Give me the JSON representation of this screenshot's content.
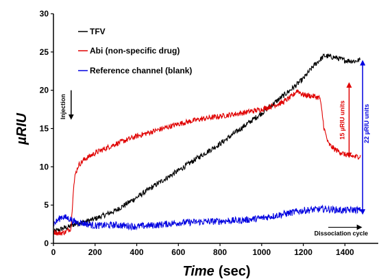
{
  "colors": {
    "tfv": "#000000",
    "abi": "#e00000",
    "reference": "#0000e0",
    "axis": "#000000"
  },
  "chart_data": {
    "type": "line",
    "title": "",
    "xlabel": {
      "main": "Time",
      "unit": "(sec)"
    },
    "ylabel": "µRIU",
    "xlim": [
      0,
      1500
    ],
    "ylim": [
      0,
      30
    ],
    "xticks": [
      0,
      200,
      400,
      600,
      800,
      1000,
      1200,
      1400
    ],
    "yticks": [
      0,
      5,
      10,
      15,
      20,
      25,
      30
    ],
    "grid": false,
    "legend_position": "top-left",
    "series": [
      {
        "name": "TFV",
        "color": "#000000",
        "x": [
          0,
          50,
          80,
          100,
          150,
          200,
          300,
          400,
          500,
          600,
          700,
          800,
          900,
          1000,
          1100,
          1150,
          1200,
          1250,
          1300,
          1350,
          1400,
          1450,
          1475
        ],
        "y": [
          1.5,
          2.0,
          2.2,
          2.5,
          2.8,
          3.2,
          4.3,
          6.0,
          7.8,
          9.5,
          11.3,
          13.0,
          15.0,
          17.0,
          19.2,
          20.3,
          21.5,
          23.2,
          24.5,
          24.3,
          23.9,
          23.8,
          24.0
        ]
      },
      {
        "name": "Abi (non-specific drug)",
        "color": "#e00000",
        "x": [
          0,
          30,
          60,
          85,
          90,
          95,
          105,
          120,
          150,
          200,
          300,
          400,
          500,
          600,
          700,
          800,
          900,
          1000,
          1100,
          1150,
          1170,
          1200,
          1250,
          1280,
          1300,
          1320,
          1350,
          1400,
          1450,
          1475
        ],
        "y": [
          1.5,
          1.3,
          1.5,
          2.0,
          4.5,
          7.0,
          9.0,
          10.2,
          11.0,
          11.8,
          13.0,
          14.0,
          14.8,
          15.6,
          16.2,
          16.6,
          17.0,
          17.5,
          18.4,
          19.3,
          20.0,
          19.4,
          19.2,
          19.0,
          15.0,
          13.0,
          12.3,
          11.6,
          11.3,
          11.4
        ]
      },
      {
        "name": "Reference channel (blank)",
        "color": "#0000e0",
        "x": [
          0,
          40,
          80,
          100,
          150,
          200,
          300,
          400,
          500,
          600,
          700,
          800,
          900,
          1000,
          1100,
          1200,
          1300,
          1350,
          1400,
          1450,
          1475
        ],
        "y": [
          2.5,
          3.5,
          3.2,
          2.8,
          2.6,
          2.3,
          2.4,
          2.2,
          2.4,
          2.7,
          2.8,
          2.9,
          3.0,
          3.3,
          3.8,
          4.3,
          4.5,
          4.4,
          4.3,
          4.4,
          4.3
        ]
      }
    ],
    "annotations": [
      {
        "id": "injection",
        "text": "Injection",
        "x": 85,
        "y_from": 20,
        "y_to": 16.5
      },
      {
        "id": "dissociation",
        "text": "Dissociation cycle",
        "x_from": 1320,
        "x_to": 1470,
        "y": 2.1
      },
      {
        "id": "abi_delta",
        "text": "15 µRIU units",
        "x": 1420,
        "y_from": 11.5,
        "y_to": 20.7
      },
      {
        "id": "total_delta",
        "text": "22 µRIU units",
        "x": 1485,
        "y_from": 4.1,
        "y_to": 23.6
      }
    ]
  }
}
